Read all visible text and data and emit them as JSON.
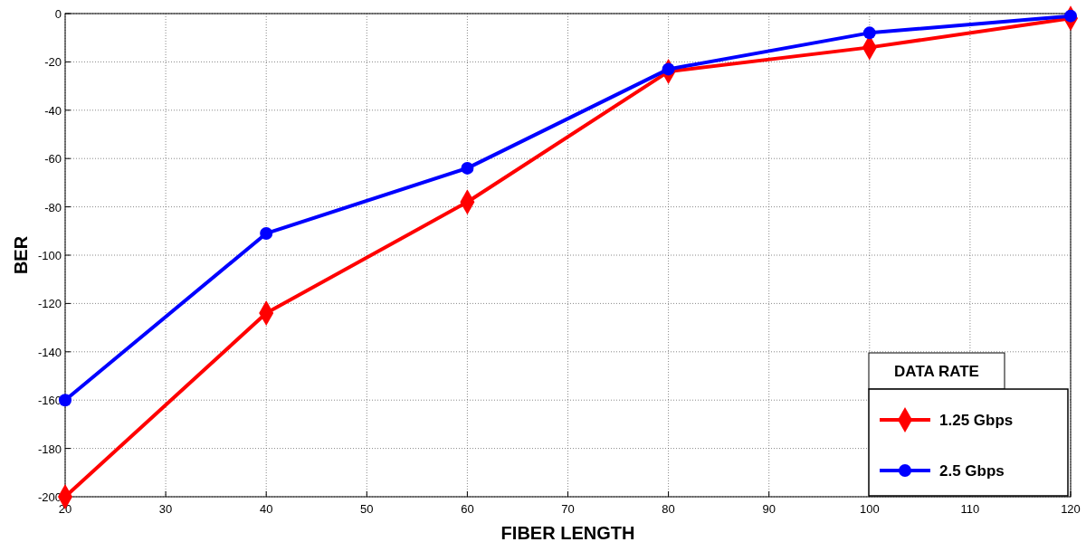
{
  "chart_data": {
    "type": "line",
    "xlabel": "FIBER LENGTH",
    "ylabel": "BER",
    "legend_title": "DATA RATE",
    "x": [
      20,
      40,
      60,
      80,
      100,
      120
    ],
    "series": [
      {
        "name": "1.25 Gbps",
        "color": "#ff0000",
        "marker": "diamond",
        "values": [
          -200,
          -124,
          -78,
          -24,
          -14,
          -2
        ]
      },
      {
        "name": "2.5 Gbps",
        "color": "#0000ff",
        "marker": "circle",
        "values": [
          -160,
          -91,
          -64,
          -23,
          -8,
          -1
        ]
      }
    ],
    "xlim": [
      20,
      120
    ],
    "xticks": [
      20,
      30,
      40,
      50,
      60,
      70,
      80,
      90,
      100,
      110,
      120
    ],
    "ylim": [
      -200,
      0
    ],
    "yticks": [
      -200,
      -180,
      -160,
      -140,
      -120,
      -100,
      -80,
      -60,
      -40,
      -20,
      0
    ],
    "grid": true,
    "legend": "bottom right",
    "line_style": "solid"
  }
}
